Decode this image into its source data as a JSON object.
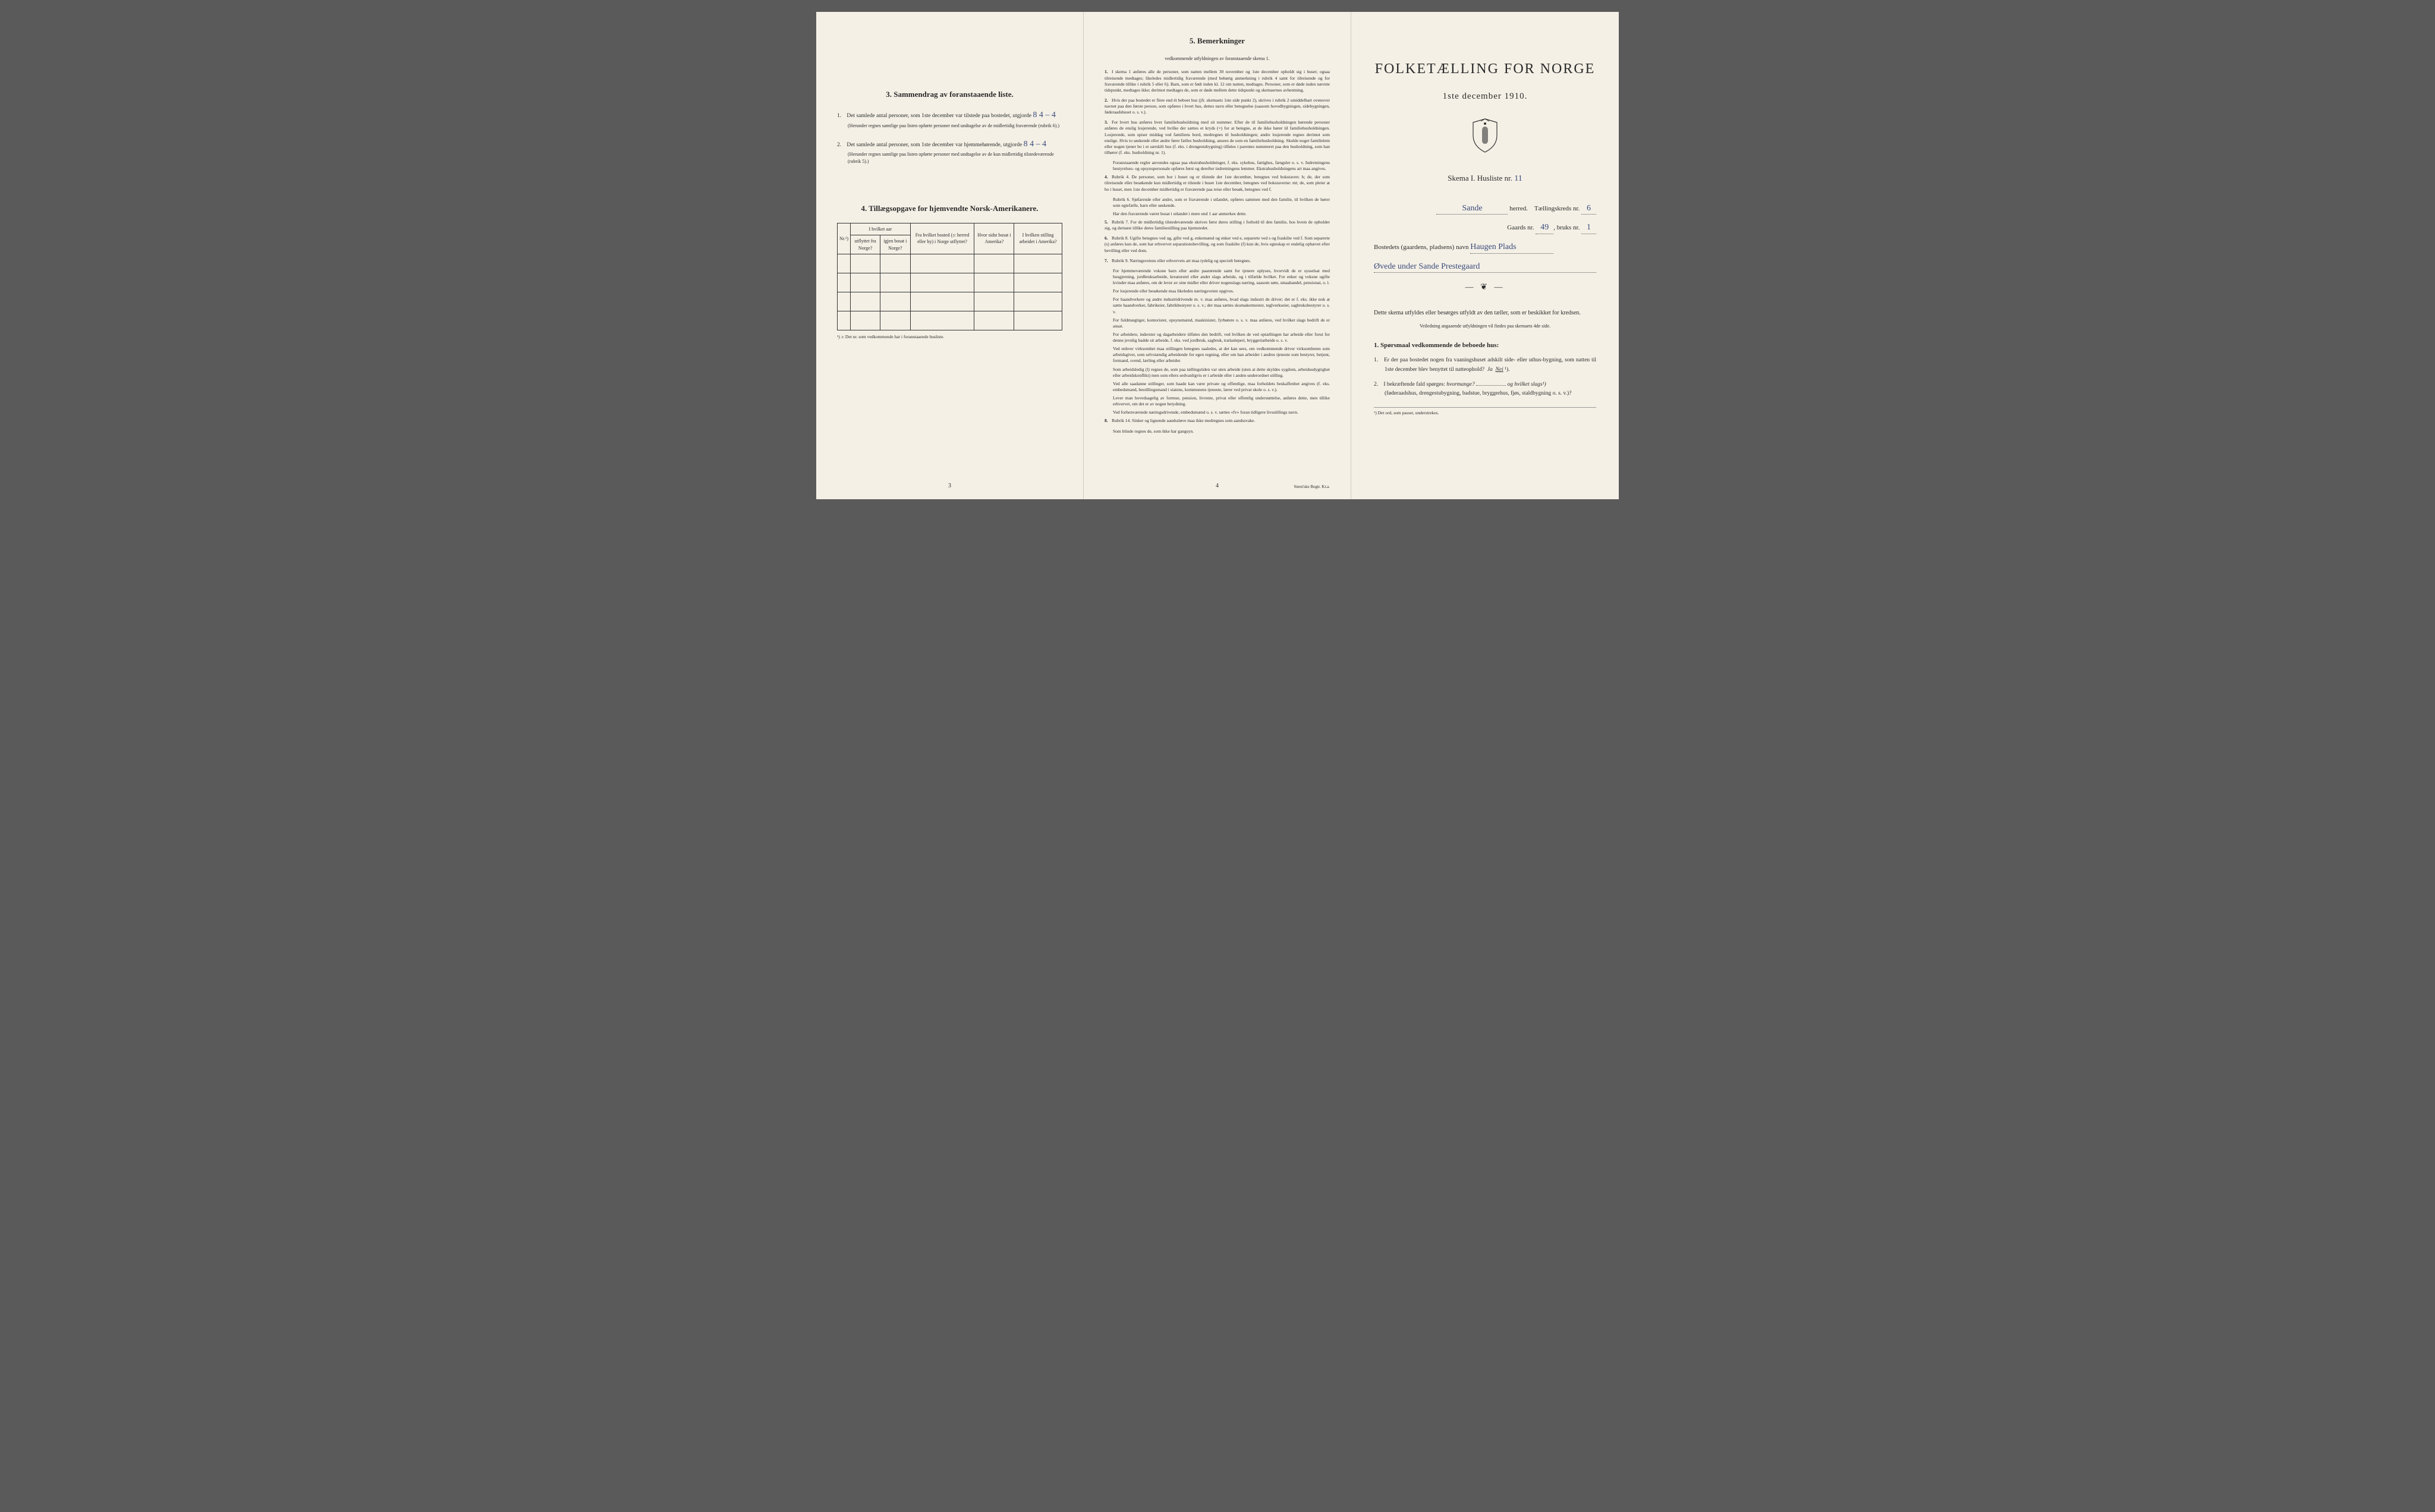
{
  "page1": {
    "section3": {
      "title": "3.  Sammendrag av foranstaaende liste.",
      "item1_pre": "Det samlede antal personer, som 1ste december var tilstede paa bostedet, utgjorde",
      "item1_hand": "8        4 – 4",
      "item1_note": "(Herunder regnes samtlige paa listen opførte personer med undtagelse av de midlertidig fraværende (rubrik 6).)",
      "item2_pre": "Det samlede antal personer, som 1ste december var hjemmehørende, utgjorde",
      "item2_hand": "8        4 – 4",
      "item2_note": "(Herunder regnes samtlige paa listen opførte personer med undtagelse av de kun midlertidig tilstedeværende (rubrik 5).)"
    },
    "section4": {
      "title": "4.  Tillægsopgave for hjemvendte Norsk-Amerikanere.",
      "headers": {
        "nr": "Nr.¹)",
        "col1a": "I hvilket aar",
        "col1b": "utflyttet fra Norge?",
        "col1c": "igjen bosat i Norge?",
        "col2": "Fra hvilket bosted (ɔ: herred eller by) i Norge utflyttet?",
        "col3": "Hvor sidst bosat i Amerika?",
        "col4": "I hvilken stilling arbeidet i Amerika?"
      },
      "footnote": "¹) ɔ: Det nr. som vedkommende har i foranstaaende husliste."
    },
    "pagenum": "3"
  },
  "page2": {
    "title": "5.  Bemerkninger",
    "subtitle": "vedkommende utfyldningen av foranstaaende skema 1.",
    "items": [
      {
        "n": "1.",
        "t": "I skema 1 anføres alle de personer, som natten mellem 30 november og 1ste december opholdt sig i huset; ogsaa tilreisende medtages; likeledes midlertidig fraværende (med behørig anmerkning i rubrik 4 samt for tilreisende og for fraværende tillike i rubrik 5 eller 6). Barn, som er født inden kl. 12 om natten, medtages. Personer, som er døde inden nævnte tidspunkt, medtages ikke; derimot medtages de, som er døde mellem dette tidspunkt og skemaernes avhentning."
      },
      {
        "n": "2.",
        "t": "Hvis der paa bostedet er flere end ét beboet hus (jfr. skemaets 1ste side punkt 2), skrives i rubrik 2 umiddelbart ovenover navnet paa den første person, som opføres i hvert hus, dettes navn eller betegnelse (saasom hovedbygningen, sidebygningen, føderaadshuset o. s. v.)."
      },
      {
        "n": "3.",
        "t": "For hvert hus anføres hver familiehusholdning med sit nummer. Efter de til familiehusholdningen hørende personer anføres de enslig losjerende, ved hvilke der sættes et kryds (×) for at betegne, at de ikke hører til familiehusholdningen. Losjerende, som spiser middag ved familiens bord, medregnes til husholdningen; andre losjerende regnes derimot som enslige. Hvis to søskende eller andre fører fælles husholdning, ansees de som en familiehusholdning. Skulde noget familielem eller nogen tjener bo i et særskilt hus (f. eks. i drengestubygning) tilføies i parentes nummeret paa den husholdning, som han tilhører (f. eks. husholdning nr. 1)."
      },
      {
        "n": "",
        "t": "Foranstaaende regler anvendes ogsaa paa ekstrahusholdninger, f. eks. sykehus, fattighus, fængsler o. s. v. Indretningens bestyrelses- og opsynspersonale opføres først og derefter indretningens lemmer. Ekstrahusholdningens art maa angives.",
        "sub": true
      },
      {
        "n": "4.",
        "t": "Rubrik 4. De personer, som bor i huset og er tilstede der 1ste december, betegnes ved bokstaven: b; de, der som tilreisende eller besøkende kun midlertidig er tilstede i huset 1ste december, betegnes ved bokstaverne: mt; de, som pleier at bo i huset, men 1ste december midlertidig er fraværende paa reise eller besøk, betegnes ved f."
      },
      {
        "n": "",
        "t": "Rubrik 6. Sjøfarende eller andre, som er fraværende i utlandet, opføres sammen med den familie, til hvilken de hører som egtefælle, barn eller søskende.",
        "sub": true
      },
      {
        "n": "",
        "t": "Har den fraværende været bosat i utlandet i mere end 1 aar anmerkes dette.",
        "sub": true
      },
      {
        "n": "5.",
        "t": "Rubrik 7. For de midlertidig tilstedeværende skrives først deres stilling i forhold til den familie, hos hvem de opholder sig, og dernæst tillike deres familiestilling paa hjemstedet."
      },
      {
        "n": "6.",
        "t": "Rubrik 8. Ugifte betegnes ved ug, gifte ved g, enkemænd og enker ved e, separerte ved s og fraskilte ved f. Som separerte (s) anføres kun de, som har erhvervet separationsbevilling, og som fraskilte (f) kun de, hvis egteskap er endelig ophævet efter bevilling eller ved dom."
      },
      {
        "n": "7.",
        "t": "Rubrik 9. Næringsveiens eller erhvervets art maa tydelig og specielt betegnes."
      },
      {
        "n": "",
        "t": "For hjemmeværende voksne barn eller andre paarørende samt for tjenere oplyses, hvorvidt de er sysselsat med husgjerning, jordbruksarbeide, kreaturstel eller andet slags arbeide, og i tilfælde hvilket. For enker og voksne ugifte kvinder maa anføres, om de lever av sine midler eller driver nogenslags næring, saasom søm, smaahandel, pensionat, o. l.",
        "sub": true
      },
      {
        "n": "",
        "t": "For losjerende eller besøkende maa likeledes næringsveien opgives.",
        "sub": true
      },
      {
        "n": "",
        "t": "For haandverkere og andre industridrivende m. v. maa anføres, hvad slags industri de driver; det er f. eks. ikke nok at sætte haandverker, fabrikeier, fabrikbestyrer o. s. v.; der maa sættes skomakermester, teglverkseier, sagbruksbestyrer o. s. v.",
        "sub": true
      },
      {
        "n": "",
        "t": "For fuldmægtiger, kontorister, opsynsmænd, maskinister, fyrbøtere o. s. v. maa anføres, ved hvilket slags bedrift de er ansat.",
        "sub": true
      },
      {
        "n": "",
        "t": "For arbeidere, inderster og dagarbeidere tilføies den bedrift, ved hvilken de ved optællingen har arbeide eller forut for denne jevnlig hadde sit arbeide, f. eks. ved jordbruk, sagbruk, trælasleperi, bryggeriarbeide o. s. v.",
        "sub": true
      },
      {
        "n": "",
        "t": "Ved enhver virksomhet maa stillingen betegnes saaledes, at det kan sees, om vedkommende driver virksomheten som arbeidsgiver, som selvstændig arbeidende for egen regning, eller om han arbeider i andres tjeneste som bestyrer, betjent, formand, svend, lærling eller arbeider.",
        "sub": true
      },
      {
        "n": "",
        "t": "Som arbeidsledig (l) regnes de, som paa tællingstiden var uten arbeide (uten at dette skyldes sygdom, arbeidsudygtighet eller arbeidskonflikt) men som ellers sedvanligvis er i arbeide eller i anden underordnet stilling.",
        "sub": true
      },
      {
        "n": "",
        "t": "Ved alle saadanne stillinger, som baade kan være private og offentlige, maa forholdets beskaffenhet angives (f. eks. embedsmand, bestillingsmand i statens, kommunens tjeneste, lærer ved privat skole o. s. v.).",
        "sub": true
      },
      {
        "n": "",
        "t": "Lever man hovedsagelig av formue, pension, livrente, privat eller offentlig understøttelse, anføres dette, men tillike erhvervet, om det er av nogen betydning.",
        "sub": true
      },
      {
        "n": "",
        "t": "Ved forhenværende næringsdrivende, embedsmænd o. s. v. sættes «fv» foran tidligere livsstillings navn.",
        "sub": true
      },
      {
        "n": "8.",
        "t": "Rubrik 14. Sinker og lignende aandssløve maa ikke medregnes som aandssvake."
      },
      {
        "n": "",
        "t": "Som blinde regnes de, som ikke har gangsyn.",
        "sub": true
      }
    ],
    "pagenum": "4",
    "printer": "Steen'ske Bogtr.  Kr.a."
  },
  "page3": {
    "title": "FOLKETÆLLING FOR NORGE",
    "date": "1ste december 1910.",
    "schema": "Skema I.  Husliste nr.",
    "schema_hand": "11",
    "herred_hand": "Sande",
    "herred_label": "herred.",
    "kreds_label": "Tællingskreds nr.",
    "kreds_hand": "6",
    "gaard_label": "Gaards nr.",
    "gaard_hand": "49",
    "bruk_label": "bruks nr.",
    "bruk_hand": "1",
    "bosted_label": "Bostedets (gaardens, pladsens) navn",
    "bosted_hand": "Haugen Plads",
    "bosted_hand2": "Øvede under Sande Prestegaard",
    "instruction": "Dette skema utfyldes eller besørges utfyldt av den tæller, som er beskikket for kredsen.",
    "instruction_sub": "Veiledning angaaende utfyldningen vil findes paa skemaets 4de side.",
    "q_head": "1. Spørsmaal vedkommende de beboede hus:",
    "q1": "Er der paa bostedet nogen fra vaaningshuset adskilt side- eller uthus-bygning, som natten til 1ste december blev benyttet til natteophold?",
    "q1_ja": "Ja",
    "q1_nei": "Nei",
    "q1_sup": "¹).",
    "q2": "I bekræftende fald spørges:",
    "q2_a": "hvormange?",
    "q2_b": "og hvilket slags¹)",
    "q2_note": "(føderaadshus, drengestubygning, badstue, bryggerhus, fjøs, staldbygning o. s. v.)?",
    "footnote": "¹) Det ord, som passer, understrekes."
  }
}
